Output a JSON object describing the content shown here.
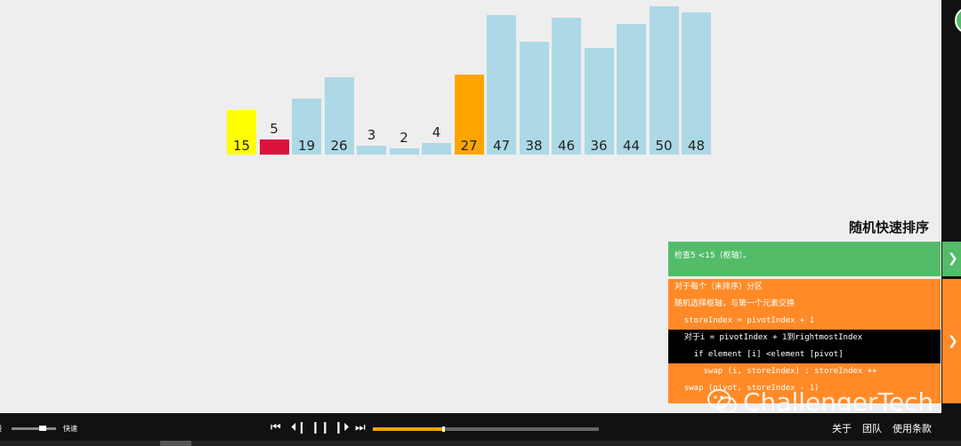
{
  "visualization": {
    "bars": [
      {
        "value": 15,
        "color": "#ffff00"
      },
      {
        "value": 5,
        "color": "#dc143c"
      },
      {
        "value": 19,
        "color": "#add8e6"
      },
      {
        "value": 26,
        "color": "#add8e6"
      },
      {
        "value": 3,
        "color": "#add8e6"
      },
      {
        "value": 2,
        "color": "#add8e6"
      },
      {
        "value": 4,
        "color": "#add8e6"
      },
      {
        "value": 27,
        "color": "#ffa500"
      },
      {
        "value": 47,
        "color": "#add8e6"
      },
      {
        "value": 38,
        "color": "#add8e6"
      },
      {
        "value": 46,
        "color": "#add8e6"
      },
      {
        "value": 36,
        "color": "#add8e6"
      },
      {
        "value": 44,
        "color": "#add8e6"
      },
      {
        "value": 50,
        "color": "#add8e6"
      },
      {
        "value": 48,
        "color": "#add8e6"
      }
    ]
  },
  "algorithm": {
    "title": "随机快速排序",
    "status": "检查5 <15（枢轴）。",
    "code_lines": [
      {
        "text": "对于每个（未排序）分区",
        "highlight": false
      },
      {
        "text": "随机选择枢轴，与第一个元素交换",
        "highlight": false
      },
      {
        "text": "  storeIndex = pivotIndex + 1",
        "highlight": false
      },
      {
        "text": "  对于i = pivotIndex + 1到rightmostIndex",
        "highlight": true
      },
      {
        "text": "    if element [i] <element [pivot]",
        "highlight": true
      },
      {
        "text": "      swap (i, storeIndex) ; storeIndex ++",
        "highlight": false
      },
      {
        "text": "  swap (pivot, storeIndex - 1)",
        "highlight": false
      }
    ]
  },
  "watermark": {
    "text": "ChallengerTech"
  },
  "controls": {
    "slow_label": "慢",
    "fast_label": "快速",
    "progress": 0.31,
    "speed_level": 0.7
  },
  "footer": {
    "about": "关于",
    "team": "团队",
    "terms": "使用条款"
  },
  "colors": {
    "status_green": "#52bc69",
    "code_orange": "#ff8a27",
    "progress_orange": "#ffa500"
  },
  "icons": [
    "first-icon",
    "previous-icon",
    "pause-icon",
    "next-icon",
    "last-icon",
    "chevron-right-icon",
    "wechat-icon"
  ]
}
